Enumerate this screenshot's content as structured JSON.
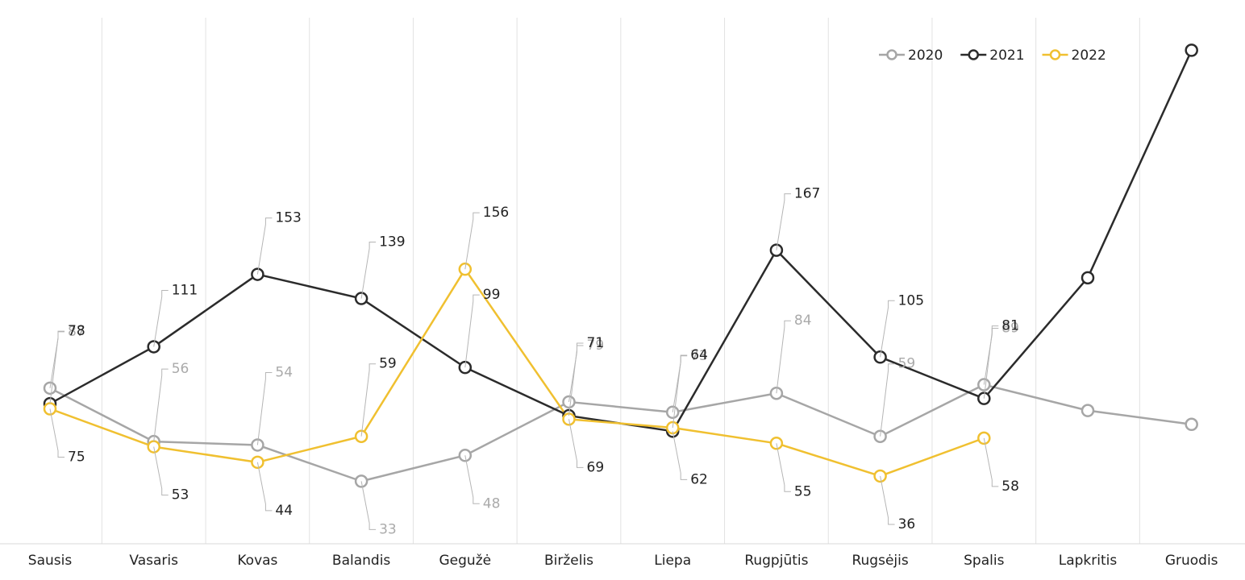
{
  "chart_data": {
    "type": "line",
    "categories": [
      "Sausis",
      "Vasaris",
      "Kovas",
      "Balandis",
      "Gegužė",
      "Birželis",
      "Liepa",
      "Rugpjūtis",
      "Rugsėjis",
      "Spalis",
      "Lapkritis",
      "Gruodis"
    ],
    "ylim": [
      0,
      300
    ],
    "legend": "top-right",
    "series": [
      {
        "name": "2020",
        "color": "#a6a6a6",
        "values": [
          87,
          56,
          54,
          33,
          48,
          79,
          73,
          84,
          59,
          89,
          74,
          66
        ],
        "value_labels": [
          "87",
          "56",
          "54",
          "33",
          "48",
          "79",
          "73",
          "84",
          "59",
          "89",
          null,
          null
        ]
      },
      {
        "name": "2021",
        "color": "#2b2b2b",
        "values": [
          78,
          111,
          153,
          139,
          99,
          71,
          62,
          167,
          105,
          81,
          151,
          283
        ],
        "value_labels": [
          "78",
          "111",
          "153",
          "139",
          "99",
          "71",
          "62",
          "167",
          "105",
          "81",
          null,
          null
        ]
      },
      {
        "name": "2022",
        "color": "#f0c030",
        "values": [
          75,
          53,
          44,
          59,
          156,
          69,
          64,
          55,
          36,
          58,
          null,
          null
        ],
        "value_labels": [
          "75",
          "53",
          "44",
          "59",
          "156",
          "69",
          "64",
          "55",
          "36",
          "58",
          null,
          null
        ]
      }
    ]
  }
}
